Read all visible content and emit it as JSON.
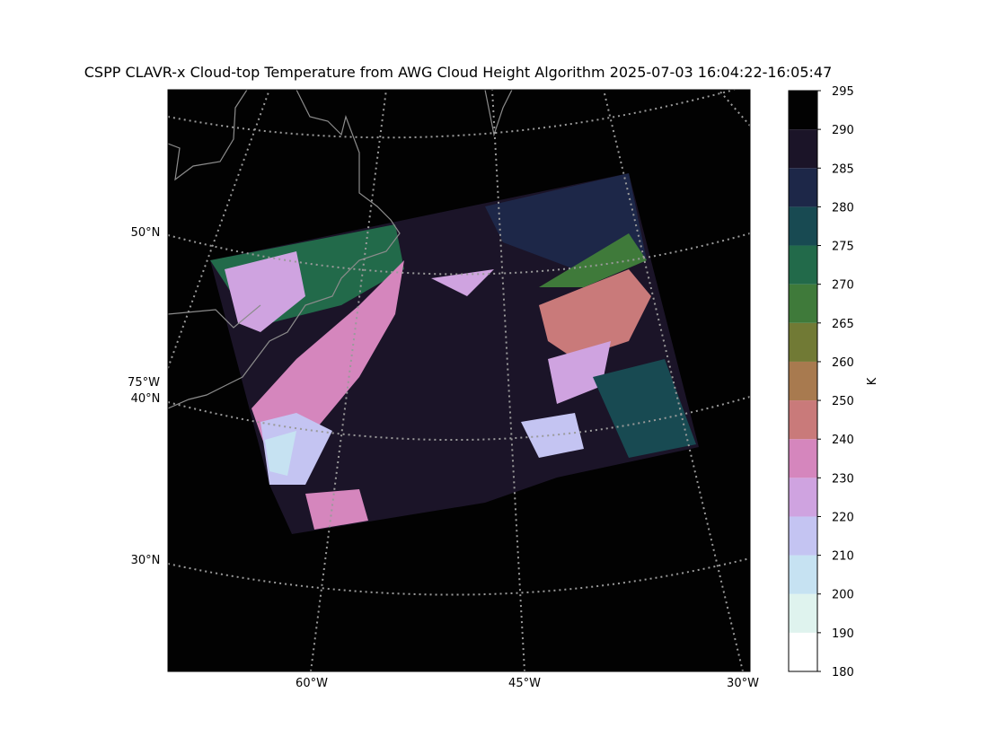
{
  "title": "CSPP CLAVR-x Cloud-top Temperature from AWG Cloud Height Algorithm 2025-07-03 16:04:22-16:05:47",
  "map": {
    "lat_labels": [
      "50°N",
      "40°N",
      "30°N"
    ],
    "lon_labels": [
      "75°W",
      "60°W",
      "45°W",
      "30°W"
    ]
  },
  "colorbar": {
    "label": "K",
    "ticks": [
      180,
      190,
      200,
      210,
      220,
      230,
      240,
      250,
      260,
      265,
      270,
      275,
      280,
      285,
      290,
      295
    ],
    "colors": [
      "#ffffff",
      "#dff3ee",
      "#c6e2f2",
      "#c4c4f2",
      "#cfa3e0",
      "#d586bd",
      "#c97a7a",
      "#a87a4f",
      "#717a35",
      "#3f7a3a",
      "#226a4a",
      "#184a52",
      "#1d2748",
      "#1b1428",
      "#020202"
    ]
  }
}
